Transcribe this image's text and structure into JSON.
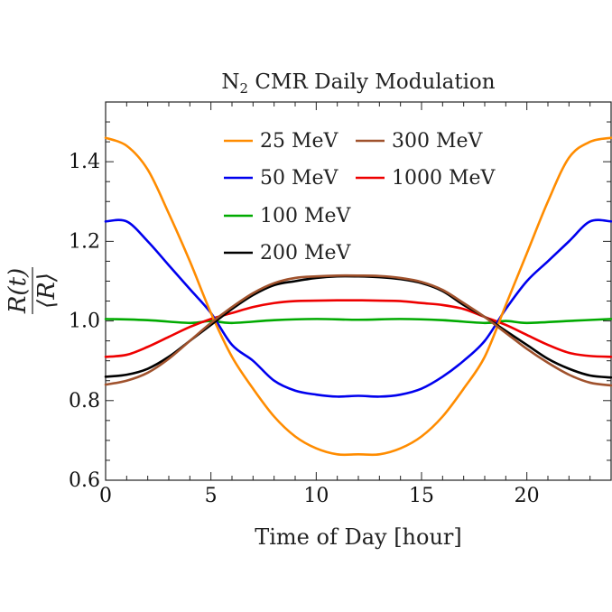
{
  "chart_data": {
    "type": "line",
    "title": "N",
    "title_subscript": "2",
    "title_suffix": " CMR Daily Modulation",
    "xlabel": "Time of Day [hour]",
    "ylabel": {
      "numerator": "R(t)",
      "denominator": "⟨R⟩"
    },
    "xlim": [
      0,
      24
    ],
    "ylim": [
      0.6,
      1.55
    ],
    "x_major_ticks": [
      0,
      5,
      10,
      15,
      20
    ],
    "x_tick_labels": [
      "0",
      "5",
      "10",
      "15",
      "20"
    ],
    "y_major_ticks": [
      0.6,
      0.8,
      1.0,
      1.2,
      1.4
    ],
    "y_tick_labels": [
      "0.6",
      "0.8",
      "1.0",
      "1.2",
      "1.4"
    ],
    "legend_position": "top-center",
    "series": [
      {
        "name": "25 MeV",
        "color": "#ff8c00",
        "x": [
          0,
          1,
          2,
          3,
          4,
          5,
          6,
          7,
          8,
          9,
          10,
          11,
          12,
          13,
          14,
          15,
          16,
          17,
          18,
          19,
          20,
          21,
          22,
          23,
          24
        ],
        "y": [
          1.46,
          1.44,
          1.38,
          1.27,
          1.15,
          1.02,
          0.91,
          0.83,
          0.76,
          0.71,
          0.68,
          0.665,
          0.665,
          0.665,
          0.68,
          0.71,
          0.76,
          0.83,
          0.91,
          1.04,
          1.17,
          1.3,
          1.41,
          1.45,
          1.46
        ]
      },
      {
        "name": "50 MeV",
        "color": "#0000ee",
        "x": [
          0,
          1,
          2,
          3,
          4,
          5,
          6,
          7,
          8,
          9,
          10,
          11,
          12,
          13,
          14,
          15,
          16,
          17,
          18,
          19,
          20,
          21,
          22,
          23,
          24
        ],
        "y": [
          1.25,
          1.25,
          1.2,
          1.14,
          1.08,
          1.02,
          0.94,
          0.9,
          0.85,
          0.825,
          0.815,
          0.81,
          0.812,
          0.81,
          0.815,
          0.83,
          0.86,
          0.9,
          0.95,
          1.03,
          1.1,
          1.15,
          1.2,
          1.25,
          1.25
        ]
      },
      {
        "name": "100 MeV",
        "color": "#00aa00",
        "x": [
          0,
          2,
          4,
          5,
          6,
          8,
          10,
          12,
          14,
          16,
          18,
          19,
          20,
          22,
          24
        ],
        "y": [
          1.005,
          1.002,
          0.995,
          1.0,
          0.995,
          1.002,
          1.005,
          1.003,
          1.005,
          1.002,
          0.995,
          1.0,
          0.995,
          1.0,
          1.005
        ]
      },
      {
        "name": "200 MeV",
        "color": "#000000",
        "x": [
          0,
          1,
          2,
          3,
          4,
          5,
          6,
          7,
          8,
          9,
          10,
          11,
          12,
          13,
          14,
          15,
          16,
          17,
          18,
          19,
          20,
          21,
          22,
          23,
          24
        ],
        "y": [
          0.86,
          0.865,
          0.88,
          0.91,
          0.95,
          0.99,
          1.03,
          1.065,
          1.09,
          1.1,
          1.108,
          1.112,
          1.112,
          1.11,
          1.105,
          1.095,
          1.075,
          1.04,
          1.01,
          0.975,
          0.94,
          0.905,
          0.88,
          0.863,
          0.858
        ]
      },
      {
        "name": "300 MeV",
        "color": "#a0522d",
        "x": [
          0,
          1,
          2,
          3,
          4,
          5,
          6,
          7,
          8,
          9,
          10,
          11,
          12,
          13,
          14,
          15,
          16,
          17,
          18,
          19,
          20,
          21,
          22,
          23,
          24
        ],
        "y": [
          0.84,
          0.85,
          0.87,
          0.905,
          0.95,
          0.995,
          1.035,
          1.07,
          1.095,
          1.108,
          1.112,
          1.114,
          1.114,
          1.113,
          1.108,
          1.098,
          1.078,
          1.045,
          1.01,
          0.97,
          0.93,
          0.895,
          0.865,
          0.845,
          0.838
        ]
      },
      {
        "name": "1000 MeV",
        "color": "#ee0000",
        "x": [
          0,
          1,
          2,
          3,
          4,
          5,
          6,
          7,
          8,
          9,
          10,
          11,
          12,
          13,
          14,
          15,
          16,
          17,
          18,
          19,
          20,
          21,
          22,
          23,
          24
        ],
        "y": [
          0.91,
          0.915,
          0.935,
          0.96,
          0.985,
          1.005,
          1.02,
          1.035,
          1.045,
          1.05,
          1.051,
          1.052,
          1.052,
          1.051,
          1.05,
          1.045,
          1.04,
          1.03,
          1.01,
          0.99,
          0.965,
          0.94,
          0.92,
          0.912,
          0.91
        ]
      }
    ],
    "legend_order": [
      "25 MeV",
      "300 MeV",
      "50 MeV",
      "1000 MeV",
      "100 MeV",
      "200 MeV"
    ]
  }
}
